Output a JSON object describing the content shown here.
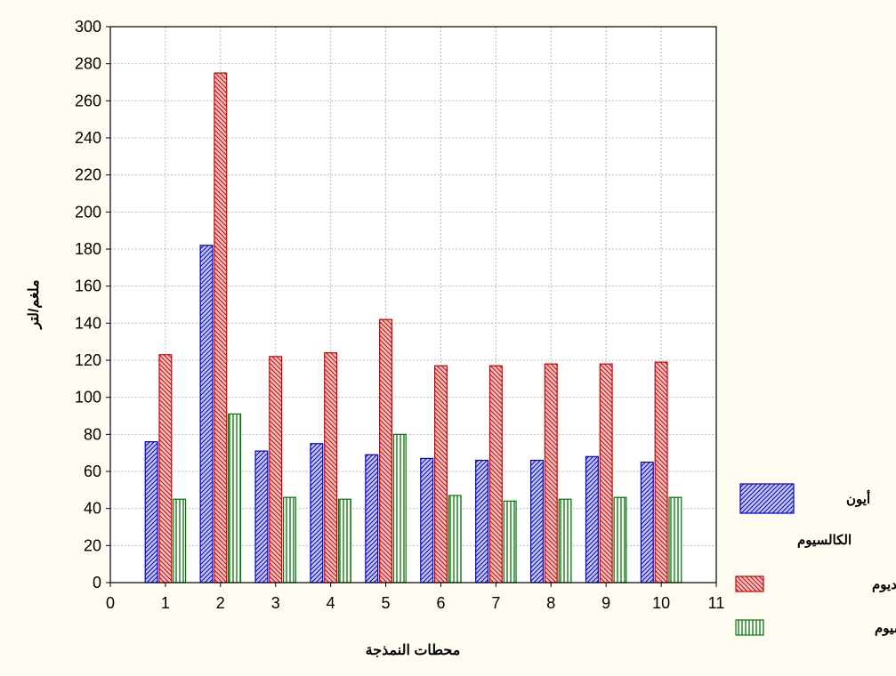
{
  "chart_data": {
    "type": "bar",
    "title": "",
    "xlabel": "محطات النمذجة",
    "ylabel": "ملغم/لتر",
    "x": [
      1,
      2,
      3,
      4,
      5,
      6,
      7,
      8,
      9,
      10
    ],
    "xlim": [
      0,
      11
    ],
    "xticks": [
      0,
      1,
      2,
      3,
      4,
      5,
      6,
      7,
      8,
      9,
      10,
      11
    ],
    "ylim": [
      0,
      300
    ],
    "yticks": [
      0,
      20,
      40,
      60,
      80,
      100,
      120,
      140,
      160,
      180,
      200,
      220,
      240,
      260,
      280,
      300
    ],
    "grid": true,
    "legend_position": "right",
    "series": [
      {
        "name": "أيون الكالسيوم",
        "values": [
          76,
          182,
          71,
          75,
          69,
          67,
          66,
          66,
          68,
          65
        ],
        "color": "#0000cc",
        "fill": "#b8bcf0",
        "pattern": "diagonal-up"
      },
      {
        "name": "أيون الصوديوم",
        "values": [
          123,
          275,
          122,
          124,
          142,
          117,
          117,
          118,
          118,
          119
        ],
        "color": "#cc0000",
        "fill": "#f0b8b8",
        "pattern": "diagonal-down"
      },
      {
        "name": "أيون البوتاسيوم",
        "values": [
          45,
          91,
          46,
          45,
          80,
          47,
          44,
          45,
          46,
          46
        ],
        "color": "#007700",
        "fill": "#d8efd0",
        "pattern": "vertical"
      }
    ]
  },
  "legend": {
    "line1": "أيون",
    "line2": "الكالسيوم",
    "line3": "أيون الصوديوم",
    "line4": "أيون البوتاسيوم"
  }
}
